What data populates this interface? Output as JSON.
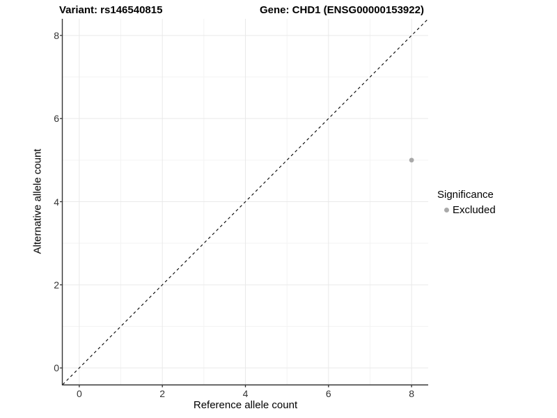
{
  "header": {
    "variant_title": "Variant: rs146540815",
    "gene_title": "Gene: CHD1 (ENSG00000153922)"
  },
  "chart_data": {
    "type": "scatter",
    "title": "Variant: rs146540815        Gene: CHD1 (ENSG00000153922)",
    "xlabel": "Reference allele count",
    "ylabel": "Alternative allele count",
    "xlim": [
      -0.4,
      8.4
    ],
    "ylim": [
      -0.4,
      8.4
    ],
    "x_ticks": [
      0,
      2,
      4,
      6,
      8
    ],
    "x_minor_ticks": [
      1,
      3,
      5,
      7
    ],
    "y_ticks": [
      0,
      2,
      4,
      6,
      8
    ],
    "y_minor_ticks": [
      1,
      3,
      5,
      7
    ],
    "grid": "major+minor",
    "legend": {
      "position": "right",
      "title": "Significance",
      "items": [
        {
          "label": "Excluded",
          "color": "#a9a9a9",
          "marker": "circle"
        }
      ]
    },
    "series": [
      {
        "name": "Excluded",
        "color": "#a9a9a9",
        "marker": "circle",
        "marker_radius_px": 3.4,
        "points": [
          {
            "x": 8,
            "y": 5
          }
        ]
      }
    ],
    "reference_line": {
      "equation": "y = x",
      "style": "dashed",
      "color": "#000000",
      "from": [
        -0.4,
        -0.4
      ],
      "to": [
        8.4,
        8.4
      ]
    }
  },
  "style": {
    "background": "#ffffff",
    "grid_major_color": "#e9e9e9",
    "grid_minor_color": "#f3f3f3",
    "axis_line_color": "#333333",
    "tick_color": "#333333",
    "tick_label_color": "#333333",
    "text_color": "#000000"
  }
}
